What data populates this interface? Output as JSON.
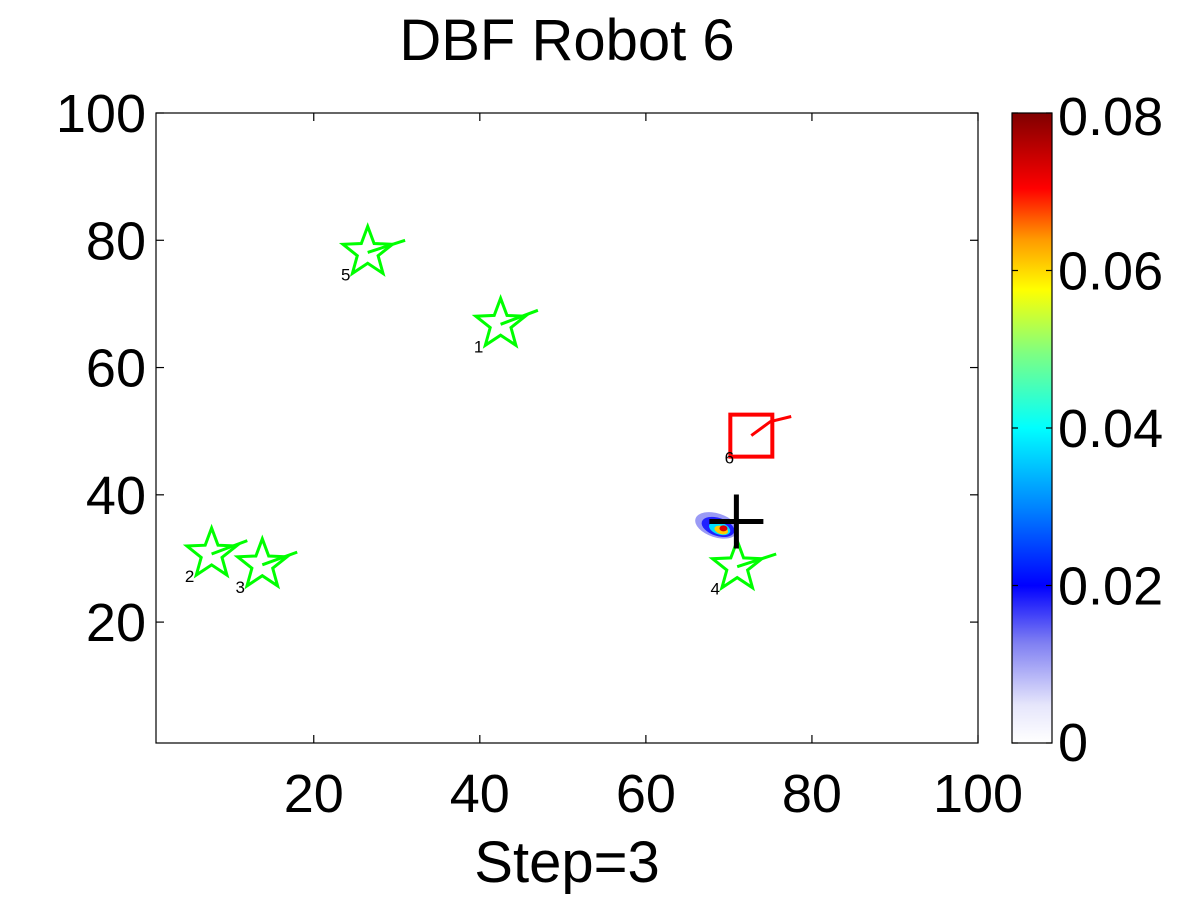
{
  "chart_data": {
    "type": "scatter",
    "title": "DBF Robot 6",
    "xlabel": "Step=3",
    "ylabel": "",
    "xlim": [
      1,
      100
    ],
    "ylim": [
      1,
      100
    ],
    "xticks": [
      20,
      40,
      60,
      80,
      100
    ],
    "yticks": [
      20,
      40,
      60,
      80,
      100
    ],
    "grid": false,
    "colorbar": {
      "range": [
        0,
        0.08
      ],
      "ticks": [
        0,
        0.02,
        0.04,
        0.06,
        0.08
      ],
      "tick_labels": [
        "0",
        "0.02",
        "0.04",
        "0.06",
        "0.08"
      ],
      "colormap": "jet"
    },
    "robots": [
      {
        "id": "1",
        "x": 42.5,
        "y": 66.8,
        "marker": "star",
        "color": "#00ff00",
        "trail": [
          [
            42.5,
            66.8
          ],
          [
            47,
            69
          ]
        ]
      },
      {
        "id": "2",
        "x": 7.7,
        "y": 30.7,
        "marker": "star",
        "color": "#00ff00",
        "trail": [
          [
            7.7,
            30.7
          ],
          [
            12,
            32.8
          ]
        ]
      },
      {
        "id": "3",
        "x": 13.8,
        "y": 29.0,
        "marker": "star",
        "color": "#00ff00",
        "trail": [
          [
            13.8,
            29.0
          ],
          [
            18,
            31
          ]
        ]
      },
      {
        "id": "4",
        "x": 71.0,
        "y": 28.7,
        "marker": "star",
        "color": "#00ff00",
        "trail": [
          [
            71.0,
            28.7
          ],
          [
            75.7,
            30.7
          ]
        ]
      },
      {
        "id": "5",
        "x": 26.5,
        "y": 78.1,
        "marker": "star",
        "color": "#00ff00",
        "trail": [
          [
            26.5,
            78.1
          ],
          [
            31,
            80
          ]
        ]
      },
      {
        "id": "6",
        "x": 72.7,
        "y": 49.3,
        "marker": "square",
        "color": "#ff0000",
        "trail": [
          [
            72.7,
            49.3
          ],
          [
            75,
            51.5
          ],
          [
            77.5,
            52.3
          ]
        ]
      }
    ],
    "estimate": {
      "x": 70.9,
      "y": 35.8,
      "marker": "plus",
      "color": "#000000"
    },
    "density_blob": {
      "x": 68.5,
      "y": 35.2,
      "peak": 0.075
    }
  }
}
